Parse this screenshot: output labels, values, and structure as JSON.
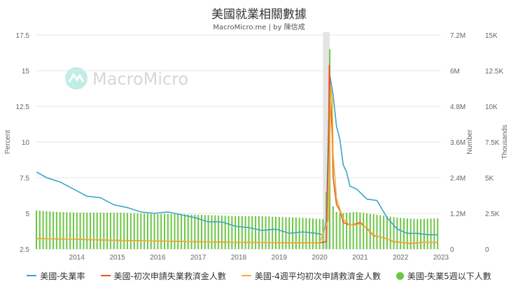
{
  "title": "美國就業相關數據",
  "subtitle": "MacroMicro.me | by 陳信成",
  "watermark": "MacroMicro",
  "colors": {
    "unemployment": "#3ba4c9",
    "initial_claims": "#e8561f",
    "claims_4w": "#f2b135",
    "under5w": "#6cc644",
    "highlight": "#d9d9d9",
    "grid": "#e6e6e6"
  },
  "legend": [
    {
      "label": "美國-失業率",
      "color": "#3ba4c9",
      "marker": "line"
    },
    {
      "label": "美國-初次申請失業救濟金人數",
      "color": "#e8561f",
      "marker": "line"
    },
    {
      "label": "美國-4週平均初次申請救濟金人數",
      "color": "#f2b135",
      "marker": "line"
    },
    {
      "label": "美國-失業5週以下人數",
      "color": "#6cc644",
      "marker": "dot"
    }
  ],
  "chart_data": {
    "type": "line",
    "x_ticks": [
      "2014",
      "2015",
      "2016",
      "2017",
      "2018",
      "2019",
      "2020",
      "2021",
      "2022",
      "2023"
    ],
    "xlim": [
      "2013-01",
      "2023-01"
    ],
    "highlight_range": [
      "2020-02",
      "2020-04"
    ],
    "axes": {
      "left": {
        "label": "Percent",
        "ylim": [
          2.5,
          17.5
        ],
        "ticks": [
          "2.5",
          "5",
          "7.5",
          "10",
          "12.5",
          "15",
          "17.5"
        ]
      },
      "right1": {
        "label": "Number",
        "ylim": [
          0,
          7200000
        ],
        "ticks": [
          "0",
          "1.2M",
          "2.4M",
          "3.6M",
          "4.8M",
          "6M",
          "7.2M"
        ]
      },
      "right2": {
        "label": "Thousands",
        "ylim": [
          0,
          15000
        ],
        "ticks": [
          "0",
          "2.5K",
          "5K",
          "7.5K",
          "10K",
          "12.5K",
          "15K"
        ]
      }
    },
    "series": [
      {
        "name": "美國-失業率",
        "axis": "left",
        "style": "line",
        "points": [
          [
            "2013-01",
            7.9
          ],
          [
            "2013-04",
            7.5
          ],
          [
            "2013-08",
            7.2
          ],
          [
            "2013-12",
            6.7
          ],
          [
            "2014-04",
            6.2
          ],
          [
            "2014-08",
            6.1
          ],
          [
            "2014-12",
            5.6
          ],
          [
            "2015-04",
            5.4
          ],
          [
            "2015-08",
            5.1
          ],
          [
            "2015-12",
            5.0
          ],
          [
            "2016-04",
            5.1
          ],
          [
            "2016-08",
            4.9
          ],
          [
            "2016-12",
            4.7
          ],
          [
            "2017-04",
            4.4
          ],
          [
            "2017-08",
            4.4
          ],
          [
            "2017-12",
            4.1
          ],
          [
            "2018-04",
            4.0
          ],
          [
            "2018-08",
            3.8
          ],
          [
            "2018-12",
            3.9
          ],
          [
            "2019-04",
            3.6
          ],
          [
            "2019-08",
            3.7
          ],
          [
            "2019-12",
            3.6
          ],
          [
            "2020-02",
            3.5
          ],
          [
            "2020-03",
            4.4
          ],
          [
            "2020-04",
            14.7
          ],
          [
            "2020-05",
            13.3
          ],
          [
            "2020-06",
            11.1
          ],
          [
            "2020-07",
            10.2
          ],
          [
            "2020-08",
            8.4
          ],
          [
            "2020-09",
            7.9
          ],
          [
            "2020-10",
            6.9
          ],
          [
            "2020-12",
            6.7
          ],
          [
            "2021-03",
            6.0
          ],
          [
            "2021-06",
            5.9
          ],
          [
            "2021-09",
            4.7
          ],
          [
            "2021-12",
            3.9
          ],
          [
            "2022-03",
            3.6
          ],
          [
            "2022-06",
            3.6
          ],
          [
            "2022-09",
            3.5
          ],
          [
            "2022-12",
            3.5
          ]
        ]
      },
      {
        "name": "美國-初次申請失業救濟金人數",
        "axis": "right1",
        "style": "line",
        "points": [
          [
            "2013-01",
            350000
          ],
          [
            "2014-01",
            330000
          ],
          [
            "2015-01",
            290000
          ],
          [
            "2016-01",
            270000
          ],
          [
            "2017-01",
            245000
          ],
          [
            "2018-01",
            225000
          ],
          [
            "2019-01",
            215000
          ],
          [
            "2020-01",
            210000
          ],
          [
            "2020-03",
            250000
          ],
          [
            "2020-03-20",
            3300000
          ],
          [
            "2020-03-27",
            6200000
          ],
          [
            "2020-04-10",
            5000000
          ],
          [
            "2020-04-24",
            3800000
          ],
          [
            "2020-05",
            2400000
          ],
          [
            "2020-06",
            1500000
          ],
          [
            "2020-07",
            1300000
          ],
          [
            "2020-08",
            900000
          ],
          [
            "2020-10",
            800000
          ],
          [
            "2020-12",
            850000
          ],
          [
            "2021-01",
            900000
          ],
          [
            "2021-03",
            700000
          ],
          [
            "2021-05",
            450000
          ],
          [
            "2021-08",
            380000
          ],
          [
            "2021-11",
            250000
          ],
          [
            "2022-01",
            230000
          ],
          [
            "2022-04",
            190000
          ],
          [
            "2022-08",
            230000
          ],
          [
            "2022-12",
            220000
          ]
        ]
      },
      {
        "name": "美國-4週平均初次申請救濟金人數",
        "axis": "right1",
        "style": "line",
        "points": [
          [
            "2013-01",
            355000
          ],
          [
            "2014-01",
            335000
          ],
          [
            "2015-01",
            295000
          ],
          [
            "2016-01",
            272000
          ],
          [
            "2017-01",
            248000
          ],
          [
            "2018-01",
            228000
          ],
          [
            "2019-01",
            218000
          ],
          [
            "2020-01",
            212000
          ],
          [
            "2020-03-20",
            1000000
          ],
          [
            "2020-03-27",
            2500000
          ],
          [
            "2020-04-10",
            5500000
          ],
          [
            "2020-04-24",
            5000000
          ],
          [
            "2020-05",
            3200000
          ],
          [
            "2020-06",
            1700000
          ],
          [
            "2020-07",
            1350000
          ],
          [
            "2020-08",
            1000000
          ],
          [
            "2020-10",
            800000
          ],
          [
            "2020-12",
            820000
          ],
          [
            "2021-01",
            850000
          ],
          [
            "2021-03",
            720000
          ],
          [
            "2021-05",
            470000
          ],
          [
            "2021-08",
            370000
          ],
          [
            "2021-11",
            260000
          ],
          [
            "2022-01",
            235000
          ],
          [
            "2022-04",
            200000
          ],
          [
            "2022-08",
            230000
          ],
          [
            "2022-12",
            225000
          ]
        ]
      },
      {
        "name": "美國-失業5週以下人數",
        "axis": "right2",
        "style": "bar",
        "points": [
          [
            "2013-01",
            2700
          ],
          [
            "2013-07",
            2600
          ],
          [
            "2014-01",
            2550
          ],
          [
            "2014-07",
            2550
          ],
          [
            "2015-01",
            2550
          ],
          [
            "2015-07",
            2500
          ],
          [
            "2016-01",
            2450
          ],
          [
            "2016-07",
            2450
          ],
          [
            "2017-01",
            2400
          ],
          [
            "2017-07",
            2350
          ],
          [
            "2018-01",
            2300
          ],
          [
            "2018-07",
            2300
          ],
          [
            "2019-01",
            2250
          ],
          [
            "2019-07",
            2200
          ],
          [
            "2020-02",
            2100
          ],
          [
            "2020-03",
            4000
          ],
          [
            "2020-04",
            14000
          ],
          [
            "2020-05",
            3000
          ],
          [
            "2020-06",
            2600
          ],
          [
            "2020-07",
            2500
          ],
          [
            "2020-12",
            2600
          ],
          [
            "2021-06",
            2400
          ],
          [
            "2021-12",
            2200
          ],
          [
            "2022-06",
            2100
          ],
          [
            "2022-12",
            2150
          ]
        ]
      }
    ]
  }
}
